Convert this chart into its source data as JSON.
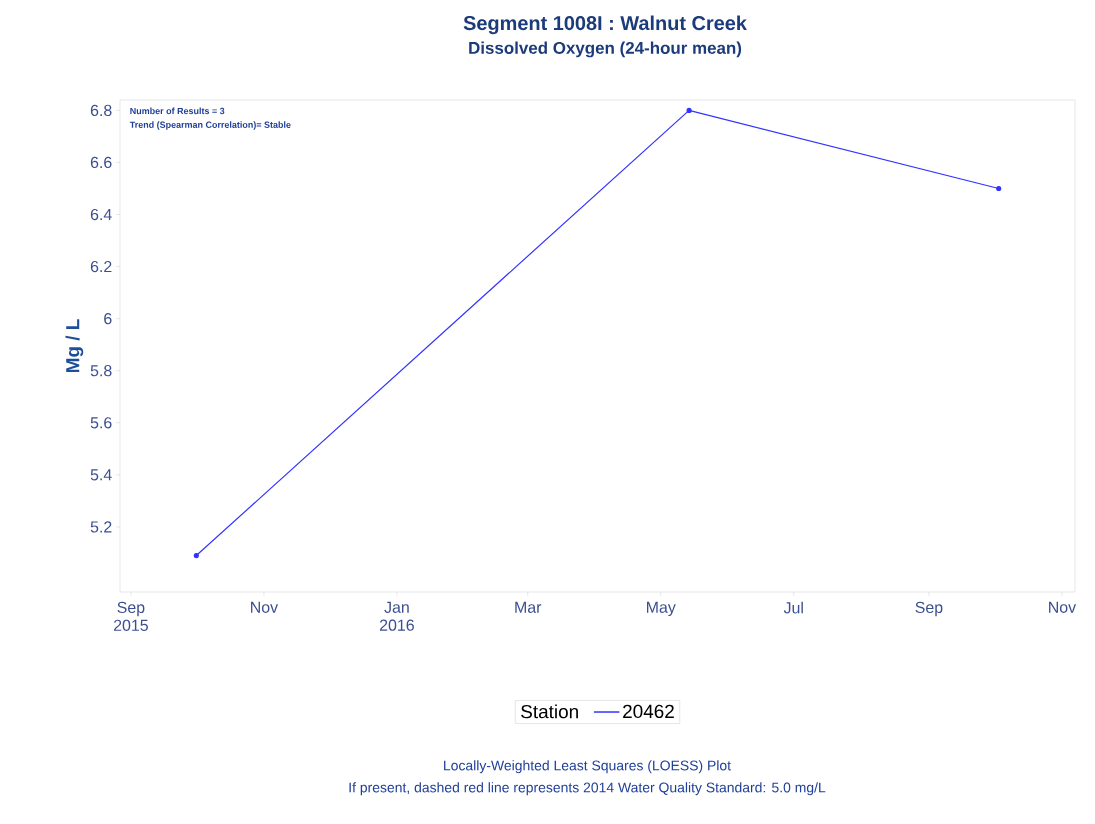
{
  "chart_data": {
    "type": "line",
    "title": "Segment 1008I :  Walnut Creek",
    "subtitle": "Dissolved Oxygen (24-hour mean)",
    "ylabel": "Mg / L",
    "legend_title": "Station",
    "annotations": [
      "Number of Results = 3",
      "Trend (Spearman Correlation)= Stable",
      "Locally-Weighted Least Squares (LOESS) Plot",
      "If present, dashed red line represents 2014 Water Quality Standard: 5.0 mg/L"
    ],
    "x": [
      "2015-10-01",
      "2016-05-14",
      "2016-10-03"
    ],
    "series": [
      {
        "name": "20462",
        "color": "#3333ff",
        "values": [
          5.09,
          6.8,
          6.5
        ]
      }
    ],
    "xlim": [
      "2015-08-27",
      "2016-11-07"
    ],
    "xticks": [
      {
        "value": "2015-09-01",
        "label": "Sep 2015"
      },
      {
        "value": "2015-11-01",
        "label": "Nov"
      },
      {
        "value": "2016-01-01",
        "label": "Jan 2016"
      },
      {
        "value": "2016-03-01",
        "label": "Mar"
      },
      {
        "value": "2016-05-01",
        "label": "May"
      },
      {
        "value": "2016-07-01",
        "label": "Jul"
      },
      {
        "value": "2016-09-01",
        "label": "Sep"
      },
      {
        "value": "2016-11-01",
        "label": "Nov"
      }
    ],
    "ylim": [
      4.95,
      6.84
    ],
    "yticks": [
      5.2,
      5.4,
      5.6,
      5.8,
      6,
      6.2,
      6.4,
      6.6,
      6.8
    ],
    "grid": false,
    "legend": "bottom",
    "marker": "circle",
    "line_style": "solid"
  }
}
